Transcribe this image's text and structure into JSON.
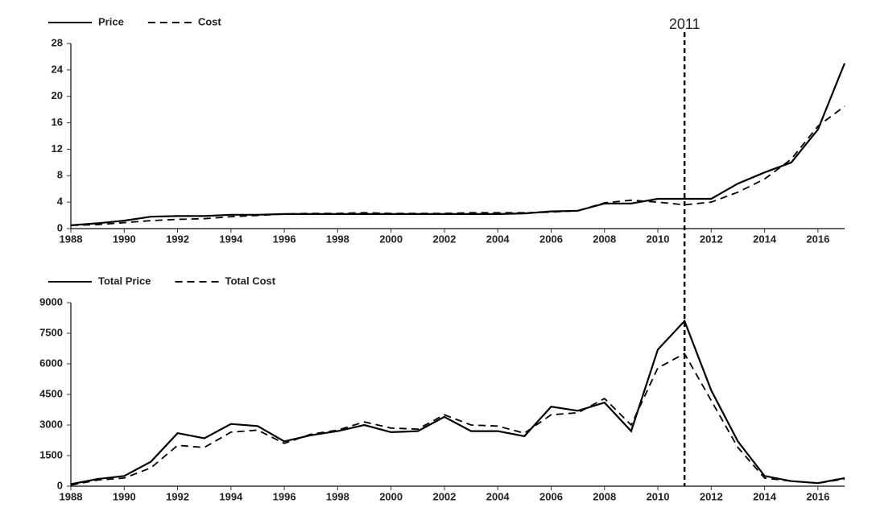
{
  "chart_data": [
    {
      "type": "line",
      "x": [
        1988,
        1989,
        1990,
        1991,
        1992,
        1993,
        1994,
        1995,
        1996,
        1997,
        1998,
        1999,
        2000,
        2001,
        2002,
        2003,
        2004,
        2005,
        2006,
        2007,
        2008,
        2009,
        2010,
        2011,
        2012,
        2013,
        2014,
        2015,
        2016,
        2017
      ],
      "series": [
        {
          "name": "Price",
          "color": "#000000",
          "style": "solid",
          "values": [
            0.5,
            0.8,
            1.2,
            1.8,
            1.9,
            1.9,
            2.1,
            2.1,
            2.2,
            2.2,
            2.2,
            2.2,
            2.2,
            2.2,
            2.2,
            2.2,
            2.2,
            2.3,
            2.6,
            2.7,
            3.8,
            3.8,
            4.5,
            4.5,
            4.5,
            6.8,
            8.5,
            10,
            15,
            25
          ]
        },
        {
          "name": "Cost",
          "color": "#000000",
          "style": "dashed",
          "values": [
            0.5,
            0.6,
            0.9,
            1.2,
            1.4,
            1.5,
            1.8,
            2.0,
            2.2,
            2.3,
            2.3,
            2.4,
            2.3,
            2.3,
            2.3,
            2.4,
            2.4,
            2.4,
            2.5,
            2.7,
            3.9,
            4.3,
            4.0,
            3.6,
            4.0,
            5.5,
            7.5,
            10.5,
            15.5,
            18.5
          ]
        }
      ],
      "xlim": [
        1988,
        2017
      ],
      "xticks": [
        1988,
        1990,
        1992,
        1994,
        1996,
        1998,
        2000,
        2002,
        2004,
        2006,
        2008,
        2010,
        2012,
        2014,
        2016
      ],
      "ylim": [
        0,
        28
      ],
      "yticks": [
        0,
        4,
        8,
        12,
        16,
        20,
        24,
        28
      ],
      "grid": false,
      "legend": "top-left",
      "vline": 2011
    },
    {
      "type": "line",
      "x": [
        1988,
        1989,
        1990,
        1991,
        1992,
        1993,
        1994,
        1995,
        1996,
        1997,
        1998,
        1999,
        2000,
        2001,
        2002,
        2003,
        2004,
        2005,
        2006,
        2007,
        2008,
        2009,
        2010,
        2011,
        2012,
        2013,
        2014,
        2015,
        2016,
        2017
      ],
      "series": [
        {
          "name": "Total Price",
          "color": "#000000",
          "style": "solid",
          "values": [
            100,
            350,
            500,
            1200,
            2600,
            2350,
            3050,
            2950,
            2200,
            2500,
            2700,
            3000,
            2650,
            2700,
            3400,
            2700,
            2700,
            2450,
            3900,
            3700,
            4100,
            2700,
            6700,
            8100,
            4700,
            2200,
            500,
            250,
            150,
            400
          ]
        },
        {
          "name": "Total Cost",
          "color": "#000000",
          "style": "dashed",
          "values": [
            50,
            300,
            400,
            900,
            2000,
            1900,
            2650,
            2750,
            2100,
            2550,
            2750,
            3150,
            2850,
            2800,
            3500,
            3000,
            2950,
            2600,
            3500,
            3600,
            4300,
            3000,
            5800,
            6500,
            4200,
            1900,
            400,
            250,
            150,
            350
          ]
        }
      ],
      "xlim": [
        1988,
        2017
      ],
      "xticks": [
        1988,
        1990,
        1992,
        1994,
        1996,
        1998,
        2000,
        2002,
        2004,
        2006,
        2008,
        2010,
        2012,
        2014,
        2016
      ],
      "ylim": [
        0,
        9000
      ],
      "yticks": [
        0,
        1500,
        3000,
        4500,
        6000,
        7500,
        9000
      ],
      "grid": false,
      "legend": "top-left"
    }
  ]
}
